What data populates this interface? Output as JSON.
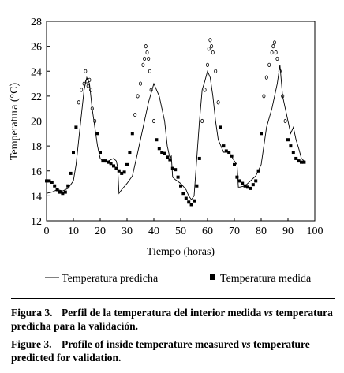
{
  "chart_data": {
    "type": "line",
    "xlabel": "Tiempo (horas)",
    "ylabel": "Temperatura (°C)",
    "xlim": [
      0,
      100
    ],
    "ylim": [
      12,
      28
    ],
    "xticks": [
      0,
      10,
      20,
      30,
      40,
      50,
      60,
      70,
      80,
      90,
      100
    ],
    "yticks": [
      12,
      14,
      16,
      18,
      20,
      22,
      24,
      26,
      28
    ],
    "grid": false,
    "legend_position": "bottom",
    "series": [
      {
        "name": "Temperatura predicha",
        "style": "line",
        "x": [
          0,
          2,
          4,
          6,
          8,
          10,
          11,
          12,
          13,
          14,
          15,
          16,
          17,
          18,
          19,
          20,
          21,
          22,
          23,
          24,
          25,
          26,
          26.5,
          27,
          28,
          30,
          32,
          34,
          36,
          38,
          40,
          42,
          44,
          45,
          46,
          46.5,
          47,
          48,
          50,
          52,
          53,
          54,
          55,
          56,
          57,
          58,
          59,
          60,
          61,
          62,
          63,
          64,
          66,
          68,
          70,
          71,
          71.5,
          72,
          74,
          76,
          78,
          80,
          82,
          84,
          86,
          87,
          88,
          90,
          91,
          92,
          93,
          94,
          95,
          96
        ],
        "y": [
          14.2,
          14.3,
          14.5,
          14.4,
          14.6,
          15.2,
          16.5,
          18.5,
          20.5,
          22.5,
          23.5,
          23.0,
          21.0,
          19.5,
          18.0,
          17.0,
          16.8,
          16.7,
          16.8,
          16.9,
          17.0,
          16.8,
          16.3,
          14.2,
          14.5,
          15.0,
          15.6,
          17.5,
          19.5,
          21.5,
          23.0,
          22.0,
          20.0,
          18.0,
          17.0,
          17.2,
          15.5,
          15.3,
          15.0,
          14.5,
          14.0,
          13.7,
          14.0,
          17.0,
          20.0,
          22.5,
          23.2,
          24.0,
          23.5,
          22.0,
          20.0,
          18.5,
          17.5,
          17.5,
          16.8,
          16.5,
          14.7,
          14.7,
          14.8,
          15.2,
          15.6,
          16.5,
          19.5,
          21.0,
          23.0,
          24.5,
          22.0,
          20.0,
          19.0,
          19.5,
          18.5,
          17.8,
          17.0,
          16.8
        ]
      },
      {
        "name": "Temperatura medida",
        "style": "markers",
        "x": [
          0,
          1,
          2,
          3,
          4,
          5,
          6,
          7,
          8,
          9,
          10,
          11,
          12,
          13,
          14,
          14.5,
          15,
          15.5,
          16,
          16.5,
          17,
          18,
          19,
          20,
          21,
          22,
          23,
          24,
          25,
          26,
          27,
          28,
          29,
          30,
          31,
          32,
          33,
          34,
          35,
          36,
          36.5,
          37,
          37.5,
          38,
          38.5,
          39,
          40,
          41,
          42,
          43,
          44,
          45,
          46,
          47,
          48,
          49,
          50,
          51,
          52,
          53,
          54,
          55,
          56,
          57,
          58,
          59,
          60,
          60.5,
          61,
          61.5,
          62,
          63,
          64,
          65,
          66,
          67,
          68,
          69,
          70,
          71,
          72,
          73,
          74,
          75,
          76,
          77,
          78,
          79,
          80,
          81,
          82,
          83,
          84,
          84.5,
          85,
          85.5,
          86,
          87,
          88,
          89,
          90,
          91,
          92,
          93,
          94,
          95,
          96
        ],
        "y": [
          15.2,
          15.2,
          15.1,
          14.8,
          14.5,
          14.3,
          14.2,
          14.3,
          14.8,
          15.8,
          17.5,
          19.5,
          21.5,
          22.5,
          23.0,
          24.0,
          23.2,
          22.8,
          23.3,
          22.5,
          21.0,
          20.0,
          19.0,
          17.5,
          16.8,
          16.8,
          16.7,
          16.6,
          16.4,
          16.2,
          16.0,
          15.8,
          15.9,
          16.5,
          17.5,
          19.0,
          20.5,
          22.0,
          23.0,
          24.5,
          25.0,
          26.0,
          25.5,
          25.0,
          24.0,
          22.5,
          20.0,
          18.5,
          17.8,
          17.5,
          17.4,
          17.1,
          16.9,
          16.2,
          16.1,
          15.5,
          14.8,
          14.2,
          13.8,
          13.5,
          13.3,
          13.6,
          14.8,
          17.0,
          20.0,
          22.5,
          24.5,
          25.8,
          26.5,
          26.0,
          25.5,
          24.0,
          21.5,
          19.5,
          18.0,
          17.6,
          17.5,
          17.2,
          16.5,
          15.5,
          15.2,
          15.0,
          14.8,
          14.7,
          14.6,
          14.9,
          15.2,
          16.0,
          19.0,
          22.0,
          23.5,
          24.5,
          25.5,
          26.0,
          26.3,
          25.5,
          25.0,
          24.0,
          22.0,
          20.0,
          18.5,
          18.0,
          17.5,
          17.0,
          16.8,
          16.7,
          16.7
        ]
      }
    ]
  },
  "legend": {
    "line_label": "Temperatura predicha",
    "marker_label": "Temperatura medida"
  },
  "caption_es": {
    "label": "Figura 3.",
    "text_before": "Perfil de la temperatura del interior medida ",
    "text_italic": "vs",
    "text_after": " temperatura predicha para la validación."
  },
  "caption_en": {
    "label": "Figure 3.",
    "text_before": "Profile of inside temperature measured ",
    "text_italic": "vs",
    "text_after": " temperature predicted for validation."
  }
}
